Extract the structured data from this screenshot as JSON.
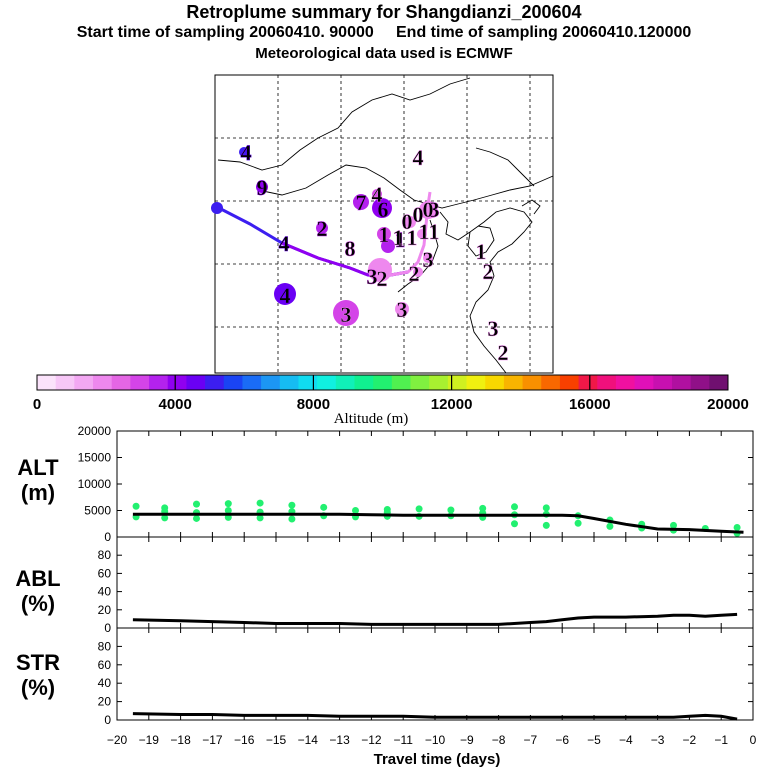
{
  "title": "Retroplume summary for Shangdianzi_200604",
  "subtitle": "Start time of sampling 20060410. 90000     End time of sampling 20060410.120000",
  "subtitle2": "Meteorological data used is ECMWF",
  "colorbar": {
    "label": "Altitude (m)",
    "ticks": [
      "0",
      "4000",
      "8000",
      "12000",
      "16000",
      "20000"
    ],
    "colors": [
      "#fbe3fb",
      "#f7c7f7",
      "#f3a8f3",
      "#ee88ee",
      "#e466e4",
      "#d444e8",
      "#b422ee",
      "#9000f0",
      "#6a00f4",
      "#3c1ef0",
      "#1a44f4",
      "#1a6cf6",
      "#1c96f4",
      "#16bcf2",
      "#10dcf0",
      "#10f0e0",
      "#10f0b8",
      "#10f090",
      "#22f070",
      "#50f050",
      "#80f040",
      "#a8f030",
      "#d0f020",
      "#f0f010",
      "#f8d800",
      "#f8b400",
      "#f89000",
      "#f86800",
      "#f84000",
      "#f01848",
      "#f0107c",
      "#f010a0",
      "#e010b8",
      "#c810b0",
      "#b010a0",
      "#901088",
      "#701070"
    ]
  },
  "map": {
    "trajectory_labels": [
      {
        "t": "4",
        "c": "#3c1ef0"
      },
      {
        "t": "9",
        "c": "#9000f0"
      },
      {
        "t": "4",
        "c": "#ee88ee"
      },
      {
        "t": "7",
        "c": "#b422ee"
      },
      {
        "t": "6",
        "c": "#9000f0"
      },
      {
        "t": "2",
        "c": "#b422ee"
      },
      {
        "t": "8",
        "c": "#d444e8"
      },
      {
        "t": "1",
        "c": "#d444e8"
      },
      {
        "t": "1",
        "c": "#b422ee"
      },
      {
        "t": "1",
        "c": "#ee88ee"
      },
      {
        "t": "0",
        "c": "#ee88ee"
      },
      {
        "t": "0",
        "c": "#ee88ee"
      },
      {
        "t": "1",
        "c": "#ee88ee"
      },
      {
        "t": "1",
        "c": "#ee88ee"
      },
      {
        "t": "4",
        "c": "#6a00f4"
      },
      {
        "t": "3",
        "c": "#d444e8"
      },
      {
        "t": "2",
        "c": "#ee88ee"
      },
      {
        "t": "2",
        "c": "#ee88ee"
      },
      {
        "t": "3",
        "c": "#ee88ee"
      },
      {
        "t": "1",
        "c": "#ee88ee"
      },
      {
        "t": "2",
        "c": "#ee88ee"
      },
      {
        "t": "3",
        "c": "#ee88ee"
      },
      {
        "t": "4",
        "c": "#ee88ee"
      },
      {
        "t": "3",
        "c": "#ee88ee"
      },
      {
        "t": "3",
        "c": "#ee88ee"
      },
      {
        "t": "2",
        "c": "#ee88ee"
      },
      {
        "t": "1",
        "c": "#ee88ee"
      },
      {
        "t": "4",
        "c": "#6a00f4"
      },
      {
        "t": "3",
        "c": "#d444e8"
      },
      {
        "t": "4",
        "c": "#6a00f4"
      },
      {
        "t": "9",
        "c": "#9000f0"
      },
      {
        "t": "0",
        "c": "#ee88ee"
      }
    ]
  },
  "xaxis": {
    "label": "Travel time (days)",
    "ticks": [
      "−20",
      "−19",
      "−18",
      "−17",
      "−16",
      "−15",
      "−14",
      "−13",
      "−12",
      "−11",
      "−10",
      "−9",
      "−8",
      "−7",
      "−6",
      "−5",
      "−4",
      "−3",
      "−2",
      "−1",
      "0"
    ]
  },
  "panels": {
    "alt": {
      "label1": "ALT",
      "label2": "(m)",
      "ticks": [
        "0",
        "5000",
        "10000",
        "15000",
        "20000"
      ]
    },
    "abl": {
      "label1": "ABL",
      "label2": "(%)",
      "ticks": [
        "0",
        "20",
        "40",
        "60",
        "80"
      ]
    },
    "str": {
      "label1": "STR",
      "label2": "(%)",
      "ticks": [
        "0",
        "20",
        "40",
        "60",
        "80"
      ]
    }
  },
  "chart_data": [
    {
      "type": "line",
      "title": "ALT (m)",
      "xlabel": "Travel time (days)",
      "ylabel": "ALT (m)",
      "xlim": [
        -20,
        0
      ],
      "ylim": [
        0,
        20000
      ],
      "x": [
        -19.5,
        -19,
        -18,
        -17,
        -16,
        -15,
        -14,
        -13,
        -12,
        -11,
        -10,
        -9,
        -8,
        -7,
        -6,
        -5.5,
        -5,
        -4,
        -3,
        -2,
        -1,
        -0.3
      ],
      "series": [
        {
          "name": "Mean altitude",
          "values": [
            4300,
            4300,
            4300,
            4300,
            4300,
            4300,
            4300,
            4300,
            4200,
            4100,
            4100,
            4100,
            4100,
            4100,
            4100,
            4000,
            3500,
            2400,
            1500,
            1400,
            1100,
            900
          ]
        }
      ],
      "scatter": {
        "name": "Plume clusters",
        "x": [
          -19.4,
          -19.4,
          -18.5,
          -18.5,
          -18.5,
          -17.5,
          -17.5,
          -17.5,
          -16.5,
          -16.5,
          -16.5,
          -15.5,
          -15.5,
          -15.5,
          -14.5,
          -14.5,
          -14.5,
          -13.5,
          -13.5,
          -12.5,
          -12.5,
          -11.5,
          -11.5,
          -11.5,
          -10.5,
          -10.5,
          -9.5,
          -9.5,
          -8.5,
          -8.5,
          -8.5,
          -7.5,
          -7.5,
          -7.5,
          -6.5,
          -6.5,
          -6.5,
          -5.5,
          -5.5,
          -4.5,
          -4.5,
          -3.5,
          -3.5,
          -2.5,
          -2.5,
          -1.5,
          -0.5,
          -0.5
        ],
        "y": [
          5800,
          3800,
          5500,
          3600,
          4800,
          6200,
          3500,
          4600,
          6300,
          3700,
          5000,
          6400,
          3600,
          4700,
          6000,
          3400,
          4800,
          5600,
          4000,
          5000,
          3800,
          5200,
          3900,
          4600,
          5300,
          3900,
          5100,
          4000,
          5400,
          3700,
          4500,
          5700,
          2500,
          4200,
          5500,
          2200,
          4300,
          4000,
          2600,
          3200,
          2000,
          2400,
          1700,
          2200,
          1300,
          1600,
          1800,
          700
        ],
        "color": "#22f070"
      }
    },
    {
      "type": "line",
      "title": "ABL (%)",
      "ylabel": "ABL (%)",
      "xlim": [
        -20,
        0
      ],
      "ylim": [
        0,
        100
      ],
      "x": [
        -19.5,
        -18,
        -17,
        -16,
        -15,
        -14,
        -13,
        -12,
        -11,
        -10,
        -9,
        -8,
        -7,
        -6.5,
        -6,
        -5.5,
        -5,
        -4,
        -3,
        -2.5,
        -2,
        -1.5,
        -1,
        -0.5
      ],
      "series": [
        {
          "name": "ABL fraction",
          "values": [
            9,
            8,
            7,
            6,
            5,
            5,
            5,
            4,
            4,
            4,
            4,
            4,
            6,
            7,
            9,
            11,
            12,
            12,
            13,
            14,
            14,
            13,
            14,
            15
          ]
        }
      ]
    },
    {
      "type": "line",
      "title": "STR (%)",
      "ylabel": "STR (%)",
      "xlim": [
        -20,
        0
      ],
      "ylim": [
        0,
        100
      ],
      "x": [
        -19.5,
        -18,
        -17,
        -16,
        -15,
        -14,
        -13,
        -12,
        -11,
        -10,
        -9,
        -8,
        -7,
        -6,
        -5,
        -4,
        -3,
        -2.5,
        -2,
        -1.5,
        -1,
        -0.5
      ],
      "series": [
        {
          "name": "STR fraction",
          "values": [
            7,
            6,
            6,
            5,
            5,
            5,
            4,
            4,
            4,
            3,
            3,
            3,
            3,
            3,
            3,
            3,
            3,
            3,
            4,
            5,
            4,
            1
          ]
        }
      ]
    }
  ]
}
